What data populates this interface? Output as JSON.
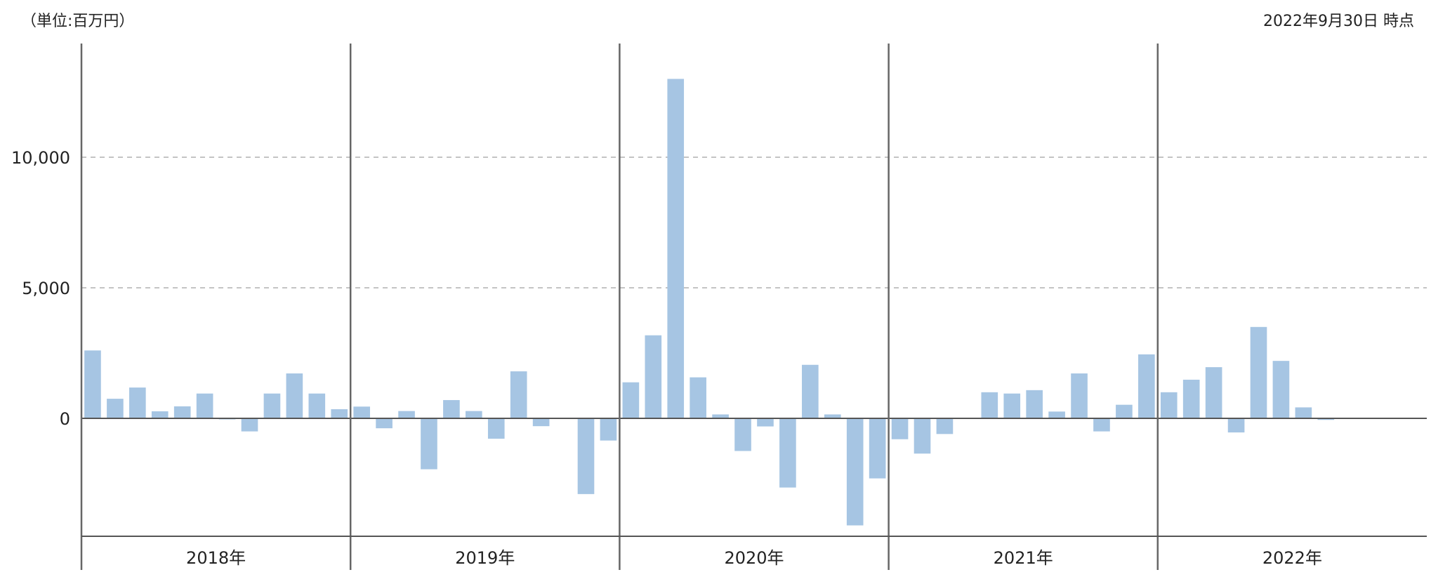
{
  "header": {
    "unit_label": "（単位:百万円）",
    "as_of": "2022年9月30日 時点"
  },
  "chart_data": {
    "type": "bar",
    "xlabel": "",
    "ylabel": "",
    "ylim": [
      -4500,
      14200
    ],
    "yticks": [
      0,
      5000,
      10000
    ],
    "ytick_labels": [
      "0",
      "5,000",
      "10,000"
    ],
    "grid": true,
    "bar_color": "#a6c5e3",
    "years": [
      "2018年",
      "2019年",
      "2020年",
      "2021年",
      "2022年"
    ],
    "months_per_year": 12,
    "series": [
      {
        "values": [
          2600,
          750,
          1180,
          270,
          460,
          950,
          -40,
          -500,
          950,
          1720,
          950,
          350,
          450,
          -380,
          280,
          -1950,
          700,
          280,
          -780,
          1800,
          -300,
          0,
          -2900,
          -850,
          1380,
          3180,
          13000,
          1570,
          150,
          -1250,
          -310,
          -2650,
          2050,
          150,
          -4100,
          -2300,
          -800,
          -1350,
          -600,
          0,
          1000,
          950,
          1080,
          260,
          1720,
          -500,
          520,
          2450,
          1000,
          1480,
          1960,
          -540,
          3500,
          2200,
          420,
          -60
        ]
      }
    ]
  }
}
